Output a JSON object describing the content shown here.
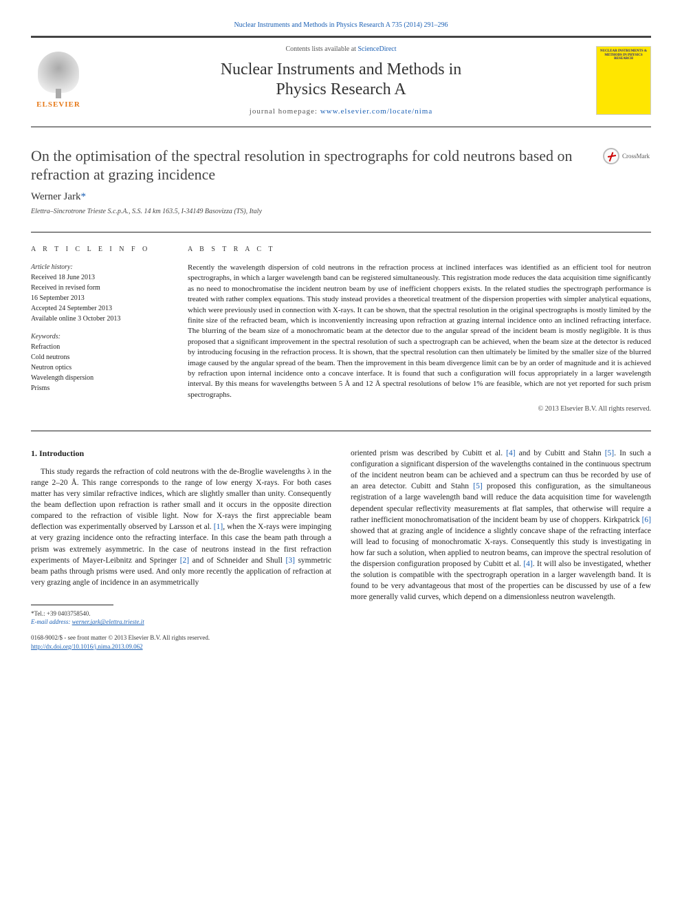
{
  "top_link": "Nuclear Instruments and Methods in Physics Research A 735 (2014) 291–296",
  "header": {
    "contents_prefix": "Contents lists available at ",
    "contents_link": "ScienceDirect",
    "journal_name_line1": "Nuclear Instruments and Methods in",
    "journal_name_line2": "Physics Research A",
    "homepage_prefix": "journal homepage: ",
    "homepage_url": "www.elsevier.com/locate/nima",
    "elsevier_label": "ELSEVIER",
    "cover_text": "NUCLEAR INSTRUMENTS & METHODS IN PHYSICS RESEARCH"
  },
  "article": {
    "title": "On the optimisation of the spectral resolution in spectrographs for cold neutrons based on refraction at grazing incidence",
    "crossmark_label": "CrossMark",
    "author": "Werner Jark",
    "author_mark": "*",
    "affiliation": "Elettra–Sincrotrone Trieste S.c.p.A., S.S. 14 km 163.5, I-34149 Basovizza (TS), Italy"
  },
  "info": {
    "heading": "A R T I C L E  I N F O",
    "history_label": "Article history:",
    "received": "Received 18 June 2013",
    "revised": "Received in revised form",
    "revised_date": "16 September 2013",
    "accepted": "Accepted 24 September 2013",
    "online": "Available online 3 October 2013",
    "keywords_label": "Keywords:",
    "kw1": "Refraction",
    "kw2": "Cold neutrons",
    "kw3": "Neutron optics",
    "kw4": "Wavelength dispersion",
    "kw5": "Prisms"
  },
  "abstract": {
    "heading": "A B S T R A C T",
    "text": "Recently the wavelength dispersion of cold neutrons in the refraction process at inclined interfaces was identified as an efficient tool for neutron spectrographs, in which a larger wavelength band can be registered simultaneously. This registration mode reduces the data acquisition time significantly as no need to monochromatise the incident neutron beam by use of inefficient choppers exists. In the related studies the spectrograph performance is treated with rather complex equations. This study instead provides a theoretical treatment of the dispersion properties with simpler analytical equations, which were previously used in connection with X-rays. It can be shown, that the spectral resolution in the original spectrographs is mostly limited by the finite size of the refracted beam, which is inconveniently increasing upon refraction at grazing internal incidence onto an inclined refracting interface. The blurring of the beam size of a monochromatic beam at the detector due to the angular spread of the incident beam is mostly negligible. It is thus proposed that a significant improvement in the spectral resolution of such a spectrograph can be achieved, when the beam size at the detector is reduced by introducing focusing in the refraction process. It is shown, that the spectral resolution can then ultimately be limited by the smaller size of the blurred image caused by the angular spread of the beam. Then the improvement in this beam divergence limit can be by an order of magnitude and it is achieved by refraction upon internal incidence onto a concave interface. It is found that such a configuration will focus appropriately in a larger wavelength interval. By this means for wavelengths between 5 Å and 12 Å spectral resolutions of below 1% are feasible, which are not yet reported for such prism spectrographs.",
    "copyright": "© 2013 Elsevier B.V. All rights reserved."
  },
  "body": {
    "section_head": "1.  Introduction",
    "col1_p1a": "This study regards the refraction of cold neutrons with the de-Broglie wavelengths λ in the range 2–20 Å. This range corresponds to the range of low energy X-rays. For both cases matter has very similar refractive indices, which are slightly smaller than unity. Consequently the beam deflection upon refraction is rather small and it occurs in the opposite direction compared to the refraction of visible light. Now for X-rays the first appreciable beam deflection was experimentally observed by Larsson et al. ",
    "ref1": "[1]",
    "col1_p1b": ", when the X-rays were impinging at very grazing incidence onto the refracting interface. In this case the beam path through a prism was extremely asymmetric. In the case of neutrons instead in the first refraction experiments of Mayer-Leibnitz and Springer ",
    "ref2": "[2]",
    "col1_p1c": " and of Schneider and Shull ",
    "ref3": "[3]",
    "col1_p1d": " symmetric beam paths through prisms were used. And only more recently the application of refraction at very grazing angle of incidence in an asymmetrically",
    "col2_p1a": "oriented prism was described by Cubitt et al. ",
    "ref4": "[4]",
    "col2_p1b": " and by Cubitt and Stahn ",
    "ref5": "[5]",
    "col2_p1c": ". In such a configuration a significant dispersion of the wavelengths contained in the continuous spectrum of the incident neutron beam can be achieved and a spectrum can thus be recorded by use of an area detector. Cubitt and Stahn ",
    "ref5b": "[5]",
    "col2_p1d": " proposed this configuration, as the simultaneous registration of a large wavelength band will reduce the data acquisition time for wavelength dependent specular reflectivity measurements at flat samples, that otherwise will require a rather inefficient monochromatisation of the incident beam by use of choppers. Kirkpatrick ",
    "ref6": "[6]",
    "col2_p1e": " showed that at grazing angle of incidence a slightly concave shape of the refracting interface will lead to focusing of monochromatic X-rays. Consequently this study is investigating in how far such a solution, when applied to neutron beams, can improve the spectral resolution of the dispersion configuration proposed by Cubitt et al. ",
    "ref4b": "[4]",
    "col2_p1f": ". It will also be investigated, whether the solution is compatible with the spectrograph operation in a larger wavelength band. It is found to be very advantageous that most of the properties can be discussed by use of a few more generally valid curves, which depend on a dimensionless neutron wavelength."
  },
  "footer": {
    "tel_label": "*Tel.: ",
    "tel": "+39 0403758540.",
    "email_label": "E-mail address: ",
    "email": "werner.jark@elettra.trieste.it",
    "issn_line": "0168-9002/$ - see front matter © 2013 Elsevier B.V. All rights reserved.",
    "doi": "http://dx.doi.org/10.1016/j.nima.2013.09.062"
  },
  "colors": {
    "link": "#1a5fb4",
    "elsevier_orange": "#e67817",
    "cover_bg": "#ffe600"
  }
}
